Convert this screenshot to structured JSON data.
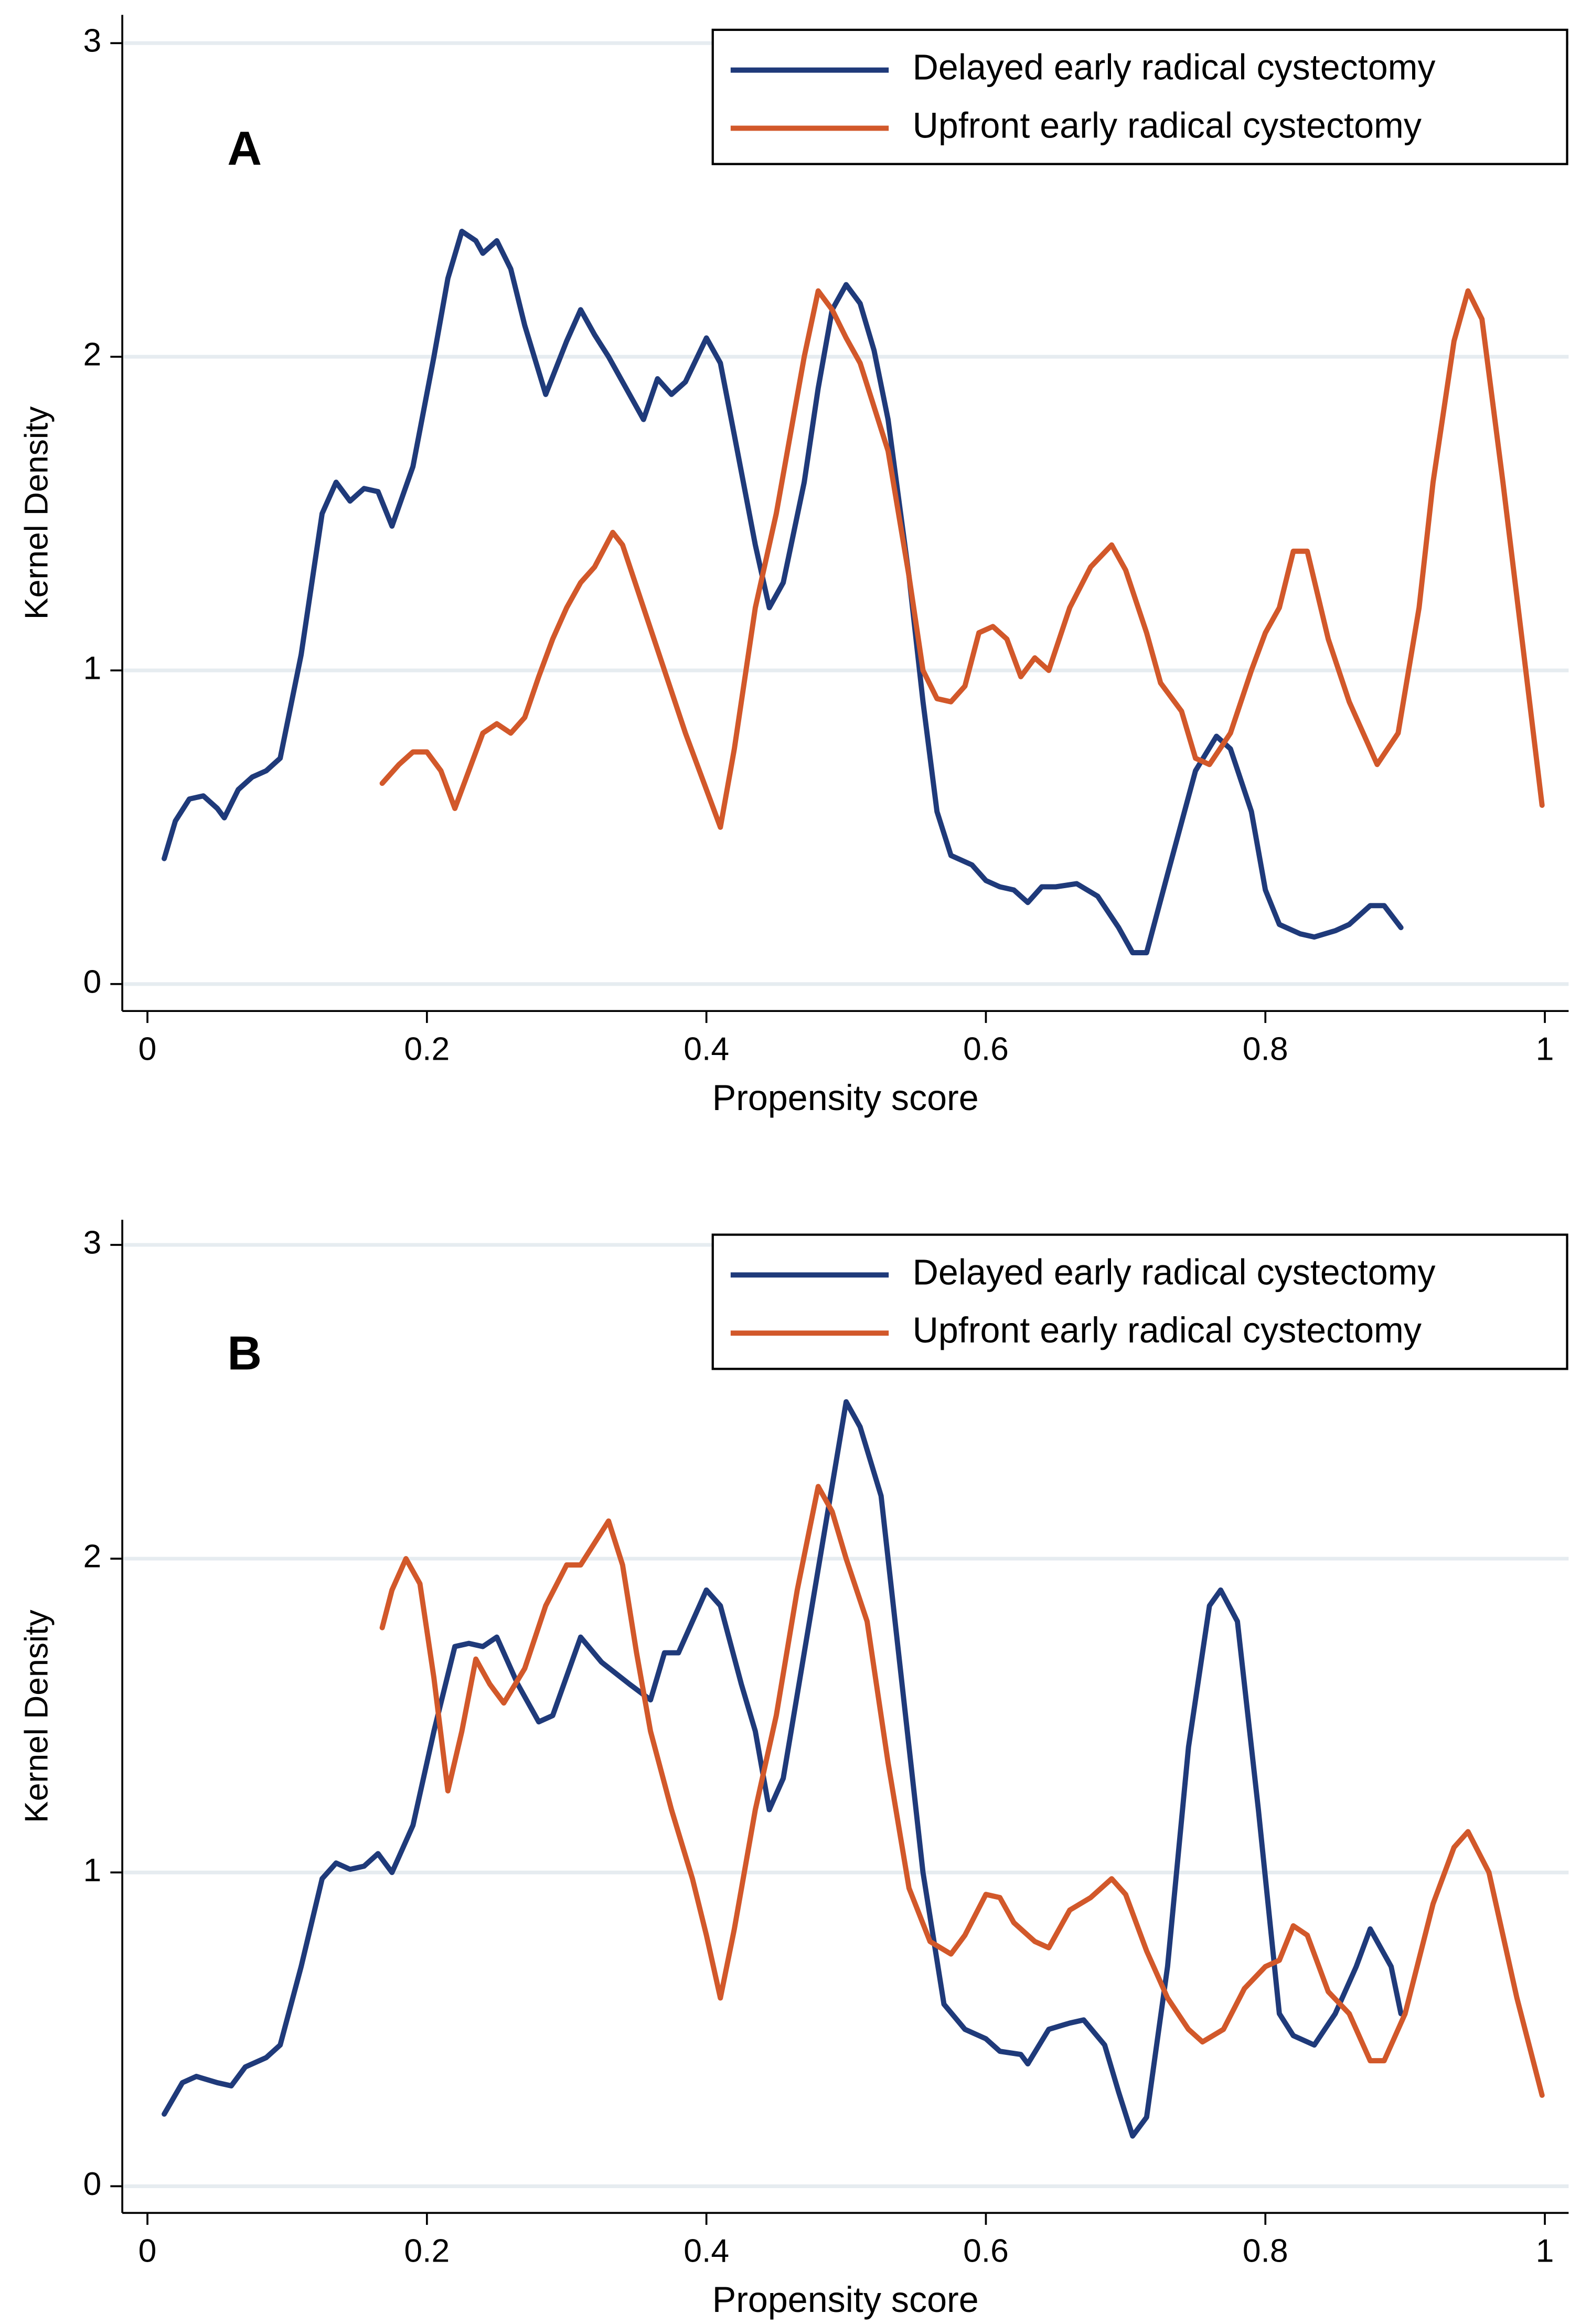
{
  "chart_data": [
    {
      "type": "line",
      "annotation": "A",
      "xlabel": "Propensity score",
      "ylabel": "Kernel Density",
      "xlim": [
        -0.018,
        1.017
      ],
      "ylim": [
        -0.086,
        3.09
      ],
      "xticks": [
        0,
        0.2,
        0.4,
        0.6,
        0.8,
        1
      ],
      "yticks": [
        0,
        1,
        2,
        3
      ],
      "grid": true,
      "legend": "upper right",
      "series": [
        {
          "name": "Delayed early radical cystectomy",
          "color": "#1f3a7a",
          "x": [
            0.012,
            0.02,
            0.03,
            0.04,
            0.05,
            0.055,
            0.065,
            0.075,
            0.085,
            0.095,
            0.11,
            0.125,
            0.135,
            0.145,
            0.155,
            0.165,
            0.175,
            0.19,
            0.205,
            0.215,
            0.225,
            0.235,
            0.24,
            0.25,
            0.26,
            0.27,
            0.285,
            0.3,
            0.31,
            0.32,
            0.33,
            0.345,
            0.355,
            0.365,
            0.375,
            0.385,
            0.4,
            0.41,
            0.42,
            0.435,
            0.445,
            0.455,
            0.47,
            0.48,
            0.49,
            0.5,
            0.51,
            0.52,
            0.53,
            0.545,
            0.555,
            0.565,
            0.575,
            0.59,
            0.6,
            0.61,
            0.62,
            0.63,
            0.64,
            0.65,
            0.665,
            0.68,
            0.695,
            0.705,
            0.715,
            0.73,
            0.75,
            0.765,
            0.775,
            0.79,
            0.8,
            0.81,
            0.825,
            0.835,
            0.85,
            0.86,
            0.875,
            0.885,
            0.897
          ],
          "values": [
            0.4,
            0.52,
            0.59,
            0.6,
            0.56,
            0.53,
            0.62,
            0.66,
            0.68,
            0.72,
            1.05,
            1.5,
            1.6,
            1.54,
            1.58,
            1.57,
            1.46,
            1.65,
            2.0,
            2.25,
            2.4,
            2.37,
            2.33,
            2.37,
            2.28,
            2.1,
            1.88,
            2.05,
            2.15,
            2.07,
            2.0,
            1.88,
            1.8,
            1.93,
            1.88,
            1.92,
            2.06,
            1.98,
            1.75,
            1.4,
            1.2,
            1.28,
            1.6,
            1.9,
            2.15,
            2.23,
            2.17,
            2.02,
            1.8,
            1.3,
            0.9,
            0.55,
            0.41,
            0.38,
            0.33,
            0.31,
            0.3,
            0.26,
            0.31,
            0.31,
            0.32,
            0.28,
            0.18,
            0.1,
            0.1,
            0.35,
            0.68,
            0.79,
            0.75,
            0.55,
            0.3,
            0.19,
            0.16,
            0.15,
            0.17,
            0.19,
            0.25,
            0.25,
            0.18
          ]
        },
        {
          "name": "Upfront early radical cystectomy",
          "color": "#d2582a",
          "x": [
            0.168,
            0.18,
            0.19,
            0.2,
            0.21,
            0.22,
            0.23,
            0.24,
            0.25,
            0.26,
            0.27,
            0.28,
            0.29,
            0.3,
            0.31,
            0.32,
            0.333,
            0.34,
            0.355,
            0.37,
            0.385,
            0.4,
            0.41,
            0.42,
            0.435,
            0.45,
            0.46,
            0.47,
            0.48,
            0.49,
            0.5,
            0.51,
            0.53,
            0.545,
            0.555,
            0.565,
            0.575,
            0.585,
            0.595,
            0.605,
            0.615,
            0.625,
            0.635,
            0.645,
            0.66,
            0.675,
            0.69,
            0.7,
            0.715,
            0.725,
            0.74,
            0.75,
            0.76,
            0.775,
            0.79,
            0.8,
            0.81,
            0.82,
            0.83,
            0.845,
            0.86,
            0.875,
            0.88,
            0.895,
            0.91,
            0.92,
            0.935,
            0.945,
            0.955,
            0.97,
            0.985,
            0.998
          ],
          "values": [
            0.64,
            0.7,
            0.74,
            0.74,
            0.68,
            0.56,
            0.68,
            0.8,
            0.83,
            0.8,
            0.85,
            0.98,
            1.1,
            1.2,
            1.28,
            1.33,
            1.44,
            1.4,
            1.2,
            1.0,
            0.8,
            0.62,
            0.5,
            0.75,
            1.2,
            1.5,
            1.75,
            2.0,
            2.21,
            2.15,
            2.06,
            1.98,
            1.7,
            1.3,
            1.0,
            0.91,
            0.9,
            0.95,
            1.12,
            1.14,
            1.1,
            0.98,
            1.04,
            1.0,
            1.2,
            1.33,
            1.4,
            1.32,
            1.12,
            0.96,
            0.87,
            0.72,
            0.7,
            0.8,
            1.0,
            1.12,
            1.2,
            1.38,
            1.38,
            1.1,
            0.9,
            0.75,
            0.7,
            0.8,
            1.2,
            1.6,
            2.05,
            2.21,
            2.12,
            1.6,
            1.05,
            0.57
          ]
        }
      ]
    },
    {
      "type": "line",
      "annotation": "B",
      "xlabel": "Propensity score",
      "ylabel": "Kernel Density",
      "xlim": [
        -0.018,
        1.017
      ],
      "ylim": [
        -0.085,
        3.08
      ],
      "xticks": [
        0,
        0.2,
        0.4,
        0.6,
        0.8,
        1
      ],
      "yticks": [
        0,
        1,
        2,
        3
      ],
      "grid": true,
      "legend": "upper right",
      "series": [
        {
          "name": "Delayed early radical cystectomy",
          "color": "#1f3a7a",
          "x": [
            0.012,
            0.025,
            0.035,
            0.05,
            0.06,
            0.07,
            0.085,
            0.095,
            0.11,
            0.125,
            0.135,
            0.145,
            0.155,
            0.165,
            0.175,
            0.19,
            0.205,
            0.22,
            0.23,
            0.24,
            0.25,
            0.265,
            0.28,
            0.29,
            0.31,
            0.325,
            0.345,
            0.36,
            0.37,
            0.38,
            0.4,
            0.41,
            0.425,
            0.435,
            0.445,
            0.455,
            0.47,
            0.485,
            0.5,
            0.51,
            0.525,
            0.54,
            0.555,
            0.57,
            0.585,
            0.6,
            0.61,
            0.625,
            0.63,
            0.645,
            0.66,
            0.67,
            0.685,
            0.695,
            0.705,
            0.715,
            0.73,
            0.745,
            0.76,
            0.768,
            0.78,
            0.795,
            0.81,
            0.82,
            0.835,
            0.85,
            0.865,
            0.875,
            0.89,
            0.897
          ],
          "values": [
            0.23,
            0.33,
            0.35,
            0.33,
            0.32,
            0.38,
            0.41,
            0.45,
            0.7,
            0.98,
            1.03,
            1.01,
            1.02,
            1.06,
            1.0,
            1.15,
            1.45,
            1.72,
            1.73,
            1.72,
            1.75,
            1.6,
            1.48,
            1.5,
            1.75,
            1.67,
            1.6,
            1.55,
            1.7,
            1.7,
            1.9,
            1.85,
            1.6,
            1.45,
            1.2,
            1.3,
            1.7,
            2.1,
            2.5,
            2.42,
            2.2,
            1.6,
            1.0,
            0.58,
            0.5,
            0.47,
            0.43,
            0.42,
            0.39,
            0.5,
            0.52,
            0.53,
            0.45,
            0.3,
            0.16,
            0.22,
            0.7,
            1.4,
            1.85,
            1.9,
            1.8,
            1.2,
            0.55,
            0.48,
            0.45,
            0.55,
            0.7,
            0.82,
            0.7,
            0.55
          ]
        },
        {
          "name": "Upfront early radical cystectomy",
          "color": "#d2582a",
          "x": [
            0.168,
            0.175,
            0.185,
            0.195,
            0.205,
            0.215,
            0.225,
            0.235,
            0.245,
            0.255,
            0.27,
            0.285,
            0.3,
            0.31,
            0.32,
            0.33,
            0.34,
            0.35,
            0.36,
            0.375,
            0.39,
            0.4,
            0.41,
            0.42,
            0.435,
            0.45,
            0.465,
            0.48,
            0.49,
            0.5,
            0.515,
            0.53,
            0.545,
            0.56,
            0.575,
            0.585,
            0.6,
            0.61,
            0.62,
            0.635,
            0.645,
            0.66,
            0.675,
            0.69,
            0.7,
            0.715,
            0.73,
            0.745,
            0.755,
            0.77,
            0.785,
            0.8,
            0.81,
            0.82,
            0.83,
            0.845,
            0.86,
            0.875,
            0.885,
            0.9,
            0.92,
            0.935,
            0.945,
            0.96,
            0.98,
            0.998
          ],
          "values": [
            1.78,
            1.9,
            2.0,
            1.92,
            1.62,
            1.26,
            1.45,
            1.68,
            1.6,
            1.54,
            1.65,
            1.85,
            1.98,
            1.98,
            2.05,
            2.12,
            1.98,
            1.7,
            1.45,
            1.2,
            0.98,
            0.8,
            0.6,
            0.82,
            1.2,
            1.5,
            1.9,
            2.23,
            2.15,
            2.0,
            1.8,
            1.35,
            0.95,
            0.78,
            0.74,
            0.8,
            0.93,
            0.92,
            0.84,
            0.78,
            0.76,
            0.88,
            0.92,
            0.98,
            0.93,
            0.75,
            0.6,
            0.5,
            0.46,
            0.5,
            0.63,
            0.7,
            0.72,
            0.83,
            0.8,
            0.62,
            0.55,
            0.4,
            0.4,
            0.55,
            0.9,
            1.08,
            1.13,
            1.0,
            0.6,
            0.29
          ]
        }
      ]
    }
  ]
}
